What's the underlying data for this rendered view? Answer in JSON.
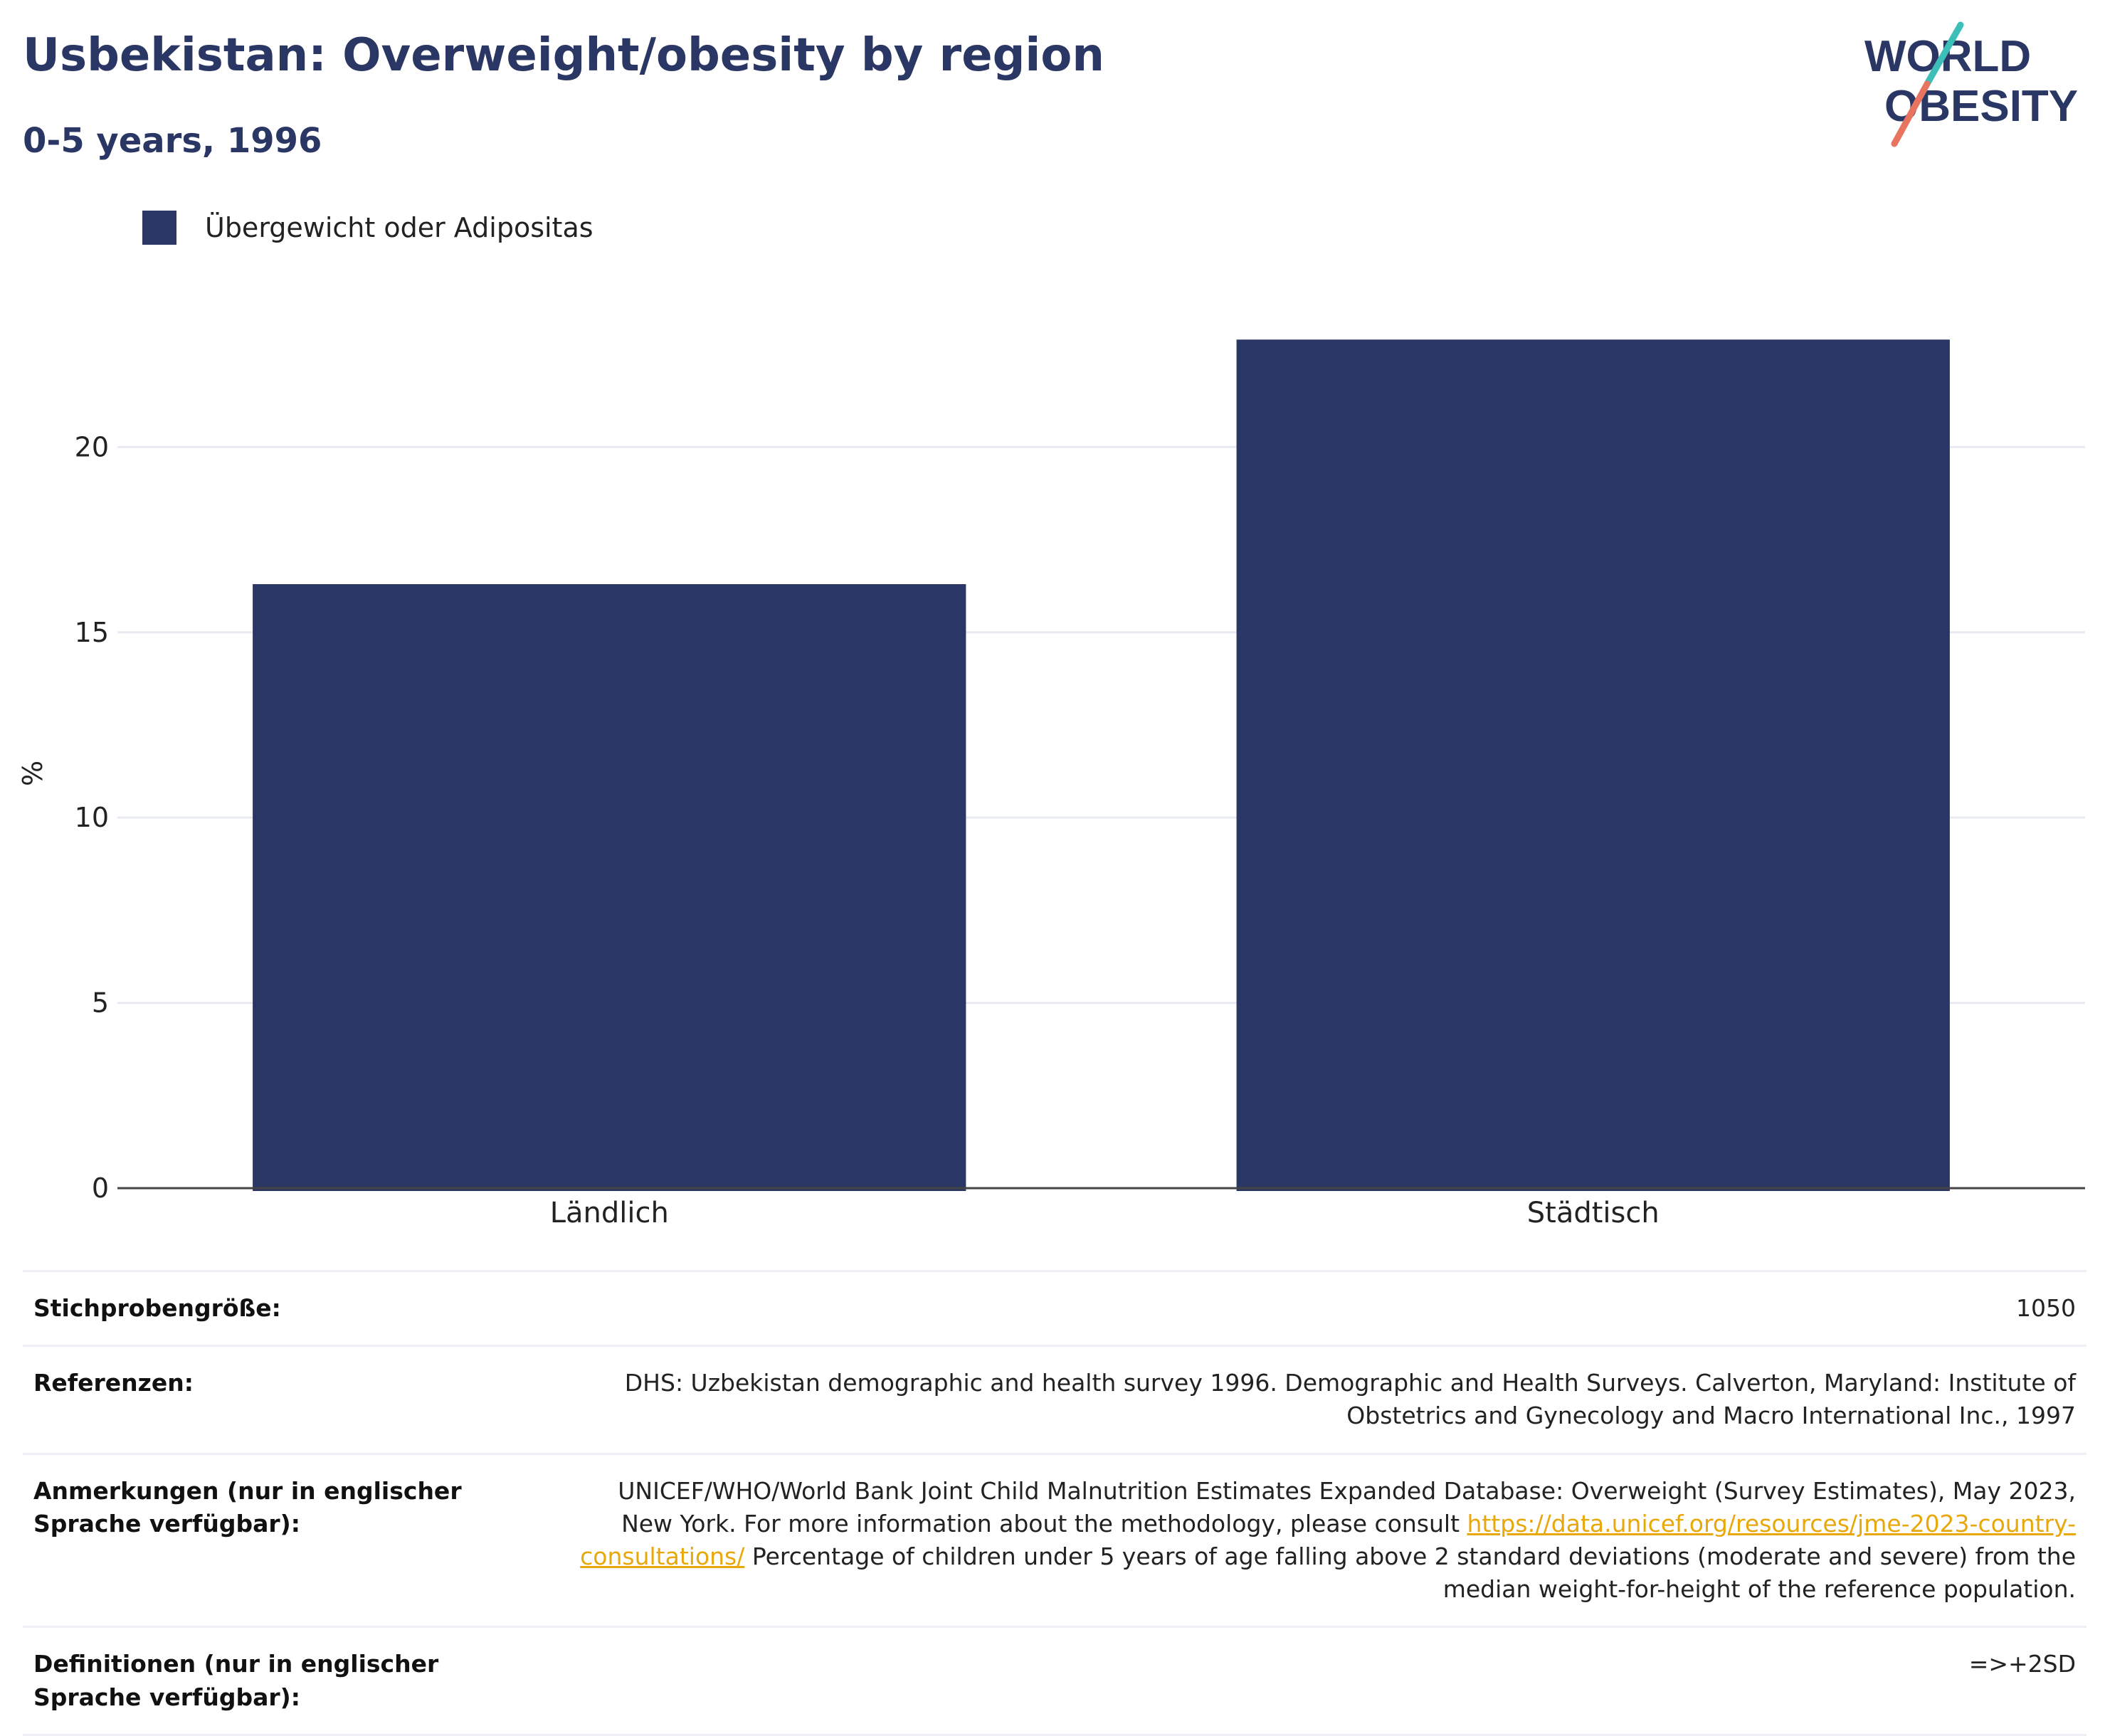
{
  "header": {
    "title": "Usbekistan: Overweight/obesity by region",
    "subtitle": "0-5 years, 1996"
  },
  "logo": {
    "line1": "WORLD",
    "line2": "OBESITY"
  },
  "colors": {
    "bar": "#2a3663",
    "title": "#2a3663",
    "grid": "#e8eaf2",
    "axis": "#444444",
    "link": "#e8a80c",
    "logo_teal": "#3cbfb8",
    "logo_coral": "#e8735e"
  },
  "legend": {
    "label": "Übergewicht oder Adipositas"
  },
  "chart_data": {
    "type": "bar",
    "categories": [
      "Ländlich",
      "Städtisch"
    ],
    "series": [
      {
        "name": "Übergewicht oder Adipositas",
        "values": [
          16.3,
          22.9
        ]
      }
    ],
    "ylabel": "%",
    "xlabel": "",
    "ylim": [
      0,
      24
    ],
    "yticks": [
      0,
      5,
      10,
      15,
      20
    ],
    "grid": true,
    "legend_position": "top-left"
  },
  "table": {
    "rows": [
      {
        "key": "Stichprobengröße:",
        "value": "1050"
      },
      {
        "key": "Referenzen:",
        "value": "DHS: Uzbekistan demographic and health survey 1996. Demographic and Health Surveys. Calverton, Maryland: Institute of Obstetrics and Gynecology and Macro International Inc., 1997"
      },
      {
        "key": "Anmerkungen (nur in englischer Sprache verfügbar):",
        "value_before_link": "UNICEF/WHO/World Bank Joint Child Malnutrition Estimates Expanded Database: Overweight (Survey Estimates), May 2023, New York. For more information about the methodology, please consult ",
        "link": "https://data.unicef.org/resources/jme-2023-country-consultations/",
        "value_after_link": " Percentage of children under 5 years of age falling above 2 standard deviations (moderate and severe) from the median weight-for-height of the reference population."
      },
      {
        "key": "Definitionen (nur in englischer Sprache verfügbar):",
        "value": "=>+2SD"
      }
    ]
  }
}
